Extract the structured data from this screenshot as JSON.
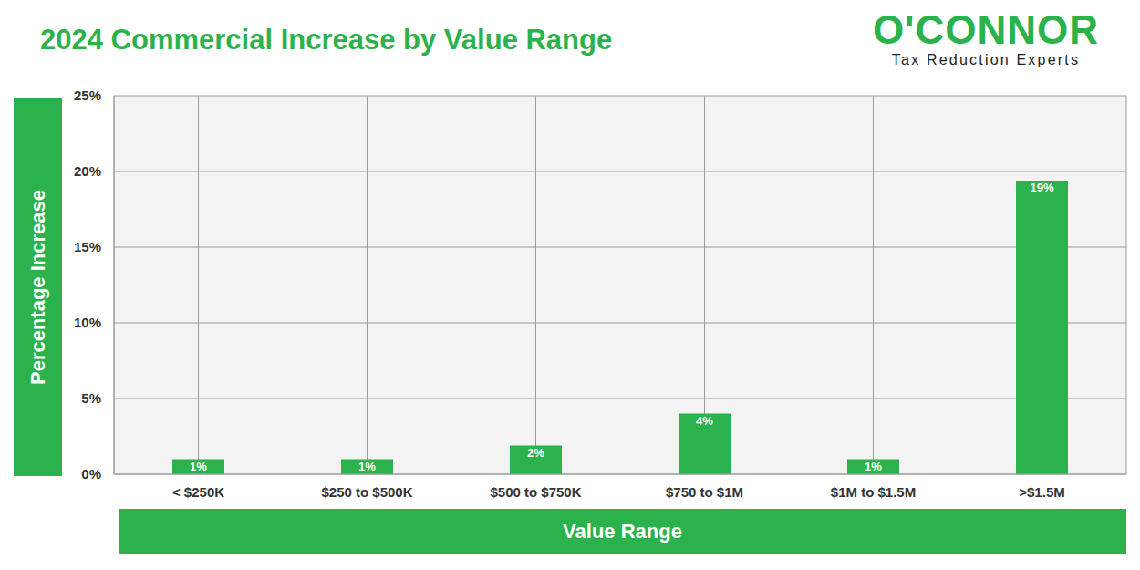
{
  "chart_data": {
    "type": "bar",
    "title": "2024 Commercial Increase by Value Range",
    "x_label": "Value Range",
    "y_label": "Percentage Increase",
    "annotations": [
      "O'CONNOR",
      "Tax Reduction Experts"
    ],
    "categories": [
      "< $250K",
      "$250 to $500K",
      "$500 to $750K",
      "$750 to $1M",
      "$1M to $1.5M",
      ">$1.5M"
    ],
    "values": [
      1,
      1,
      1.9,
      4.0,
      1,
      19.4
    ],
    "value_labels": [
      "1%",
      "1%",
      "2%",
      "4%",
      "1%",
      "19%"
    ],
    "data_labels": true,
    "color": "#2bb24c",
    "ylim": [
      0,
      25
    ],
    "yticks": [
      {
        "value": 0,
        "label": "0%"
      },
      {
        "value": 5,
        "label": "5%"
      },
      {
        "value": 10,
        "label": "10%"
      },
      {
        "value": 15,
        "label": "15%"
      },
      {
        "value": 20,
        "label": "20%"
      },
      {
        "value": 25,
        "label": "25%"
      }
    ],
    "grid": true
  }
}
